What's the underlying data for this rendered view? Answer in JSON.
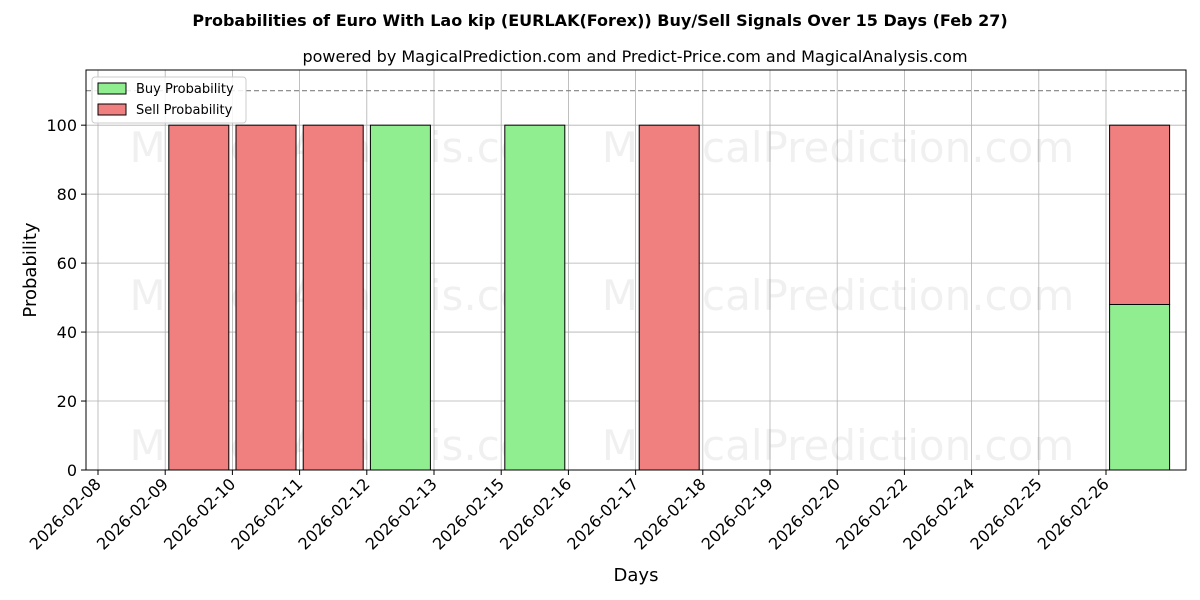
{
  "chart_data": {
    "type": "bar",
    "stacked": true,
    "title": "Probabilities of Euro With Lao kip (EURLAK(Forex)) Buy/Sell Signals Over 15 Days (Feb 27)",
    "subtitle": "powered by MagicalPrediction.com and Predict-Price.com and MagicalAnalysis.com",
    "xlabel": "Days",
    "ylabel": "Probability",
    "ylim": [
      0,
      116
    ],
    "yticks": [
      0,
      20,
      40,
      60,
      80,
      100
    ],
    "reference_line": 110,
    "grid": true,
    "legend_position": "top-left",
    "x_tick_labels": [
      "2026-02-08",
      "2026-02-09",
      "2026-02-10",
      "2026-02-11",
      "2026-02-12",
      "2026-02-13",
      "2026-02-15",
      "2026-02-16",
      "2026-02-17",
      "2026-02-18",
      "2026-02-19",
      "2026-02-20",
      "2026-02-22",
      "2026-02-24",
      "2026-02-25",
      "2026-02-26"
    ],
    "categories": [
      "2026-02-09",
      "2026-02-10",
      "2026-02-11",
      "2026-02-12",
      "2026-02-15",
      "2026-02-17",
      "2026-02-26"
    ],
    "series": [
      {
        "name": "Buy Probability",
        "color": "#90ee90",
        "values": [
          0,
          0,
          0,
          100,
          100,
          0,
          48
        ]
      },
      {
        "name": "Sell Probability",
        "color": "#f08080",
        "values": [
          100,
          100,
          100,
          0,
          0,
          100,
          52
        ]
      }
    ],
    "watermarks": [
      "MagicalAnalysis.com",
      "MagicalPrediction.com"
    ]
  }
}
